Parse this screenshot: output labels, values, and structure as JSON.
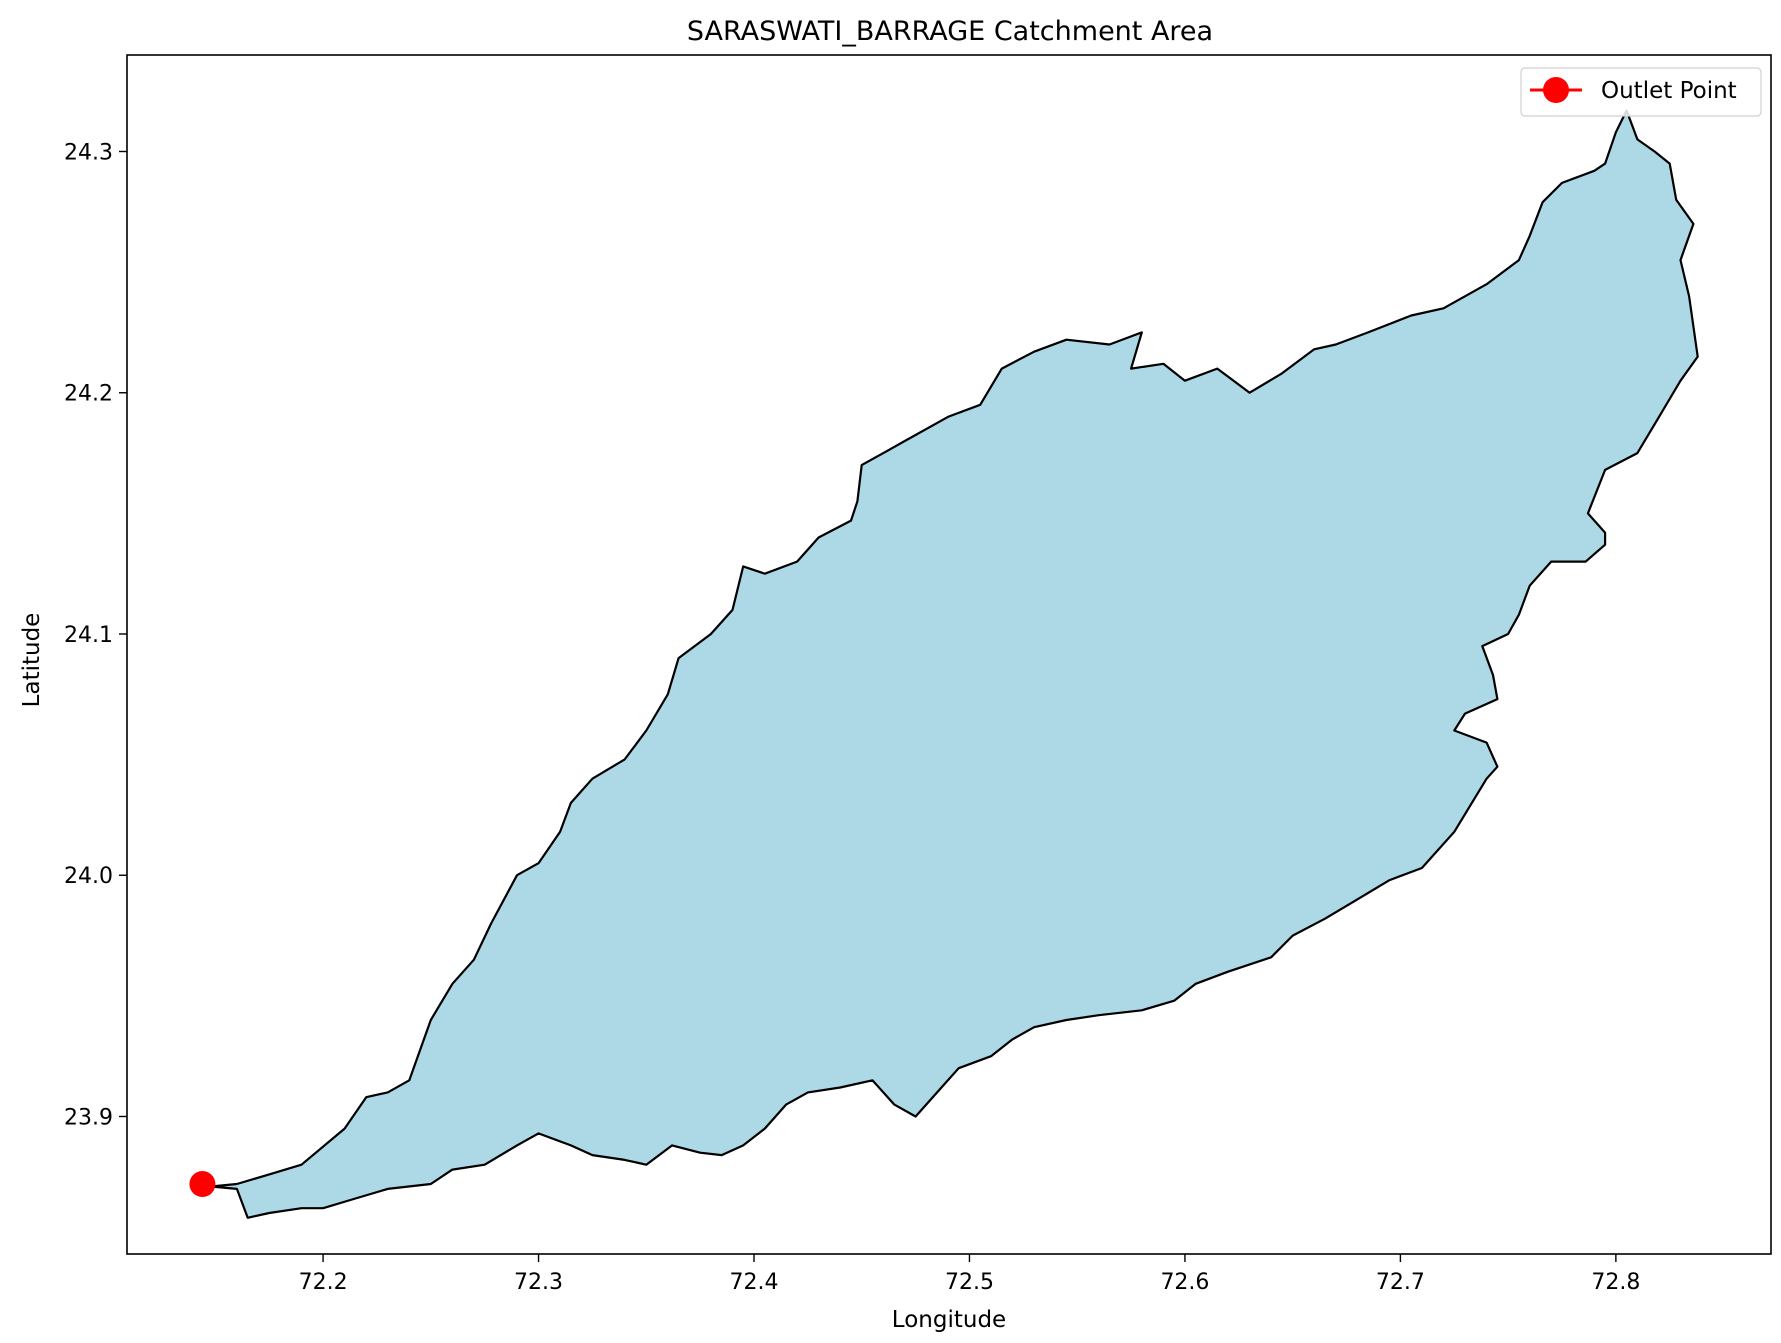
{
  "chart_data": {
    "type": "map",
    "title": "SARASWATI_BARRAGE Catchment Area",
    "xlabel": "Longitude",
    "ylabel": "Latitude",
    "xlim": [
      72.109,
      72.872
    ],
    "ylim": [
      23.843,
      24.34
    ],
    "xticks": [
      {
        "value": 72.2,
        "label": "72.2"
      },
      {
        "value": 72.3,
        "label": "72.3"
      },
      {
        "value": 72.4,
        "label": "72.4"
      },
      {
        "value": 72.5,
        "label": "72.5"
      },
      {
        "value": 72.6,
        "label": "72.6"
      },
      {
        "value": 72.7,
        "label": "72.7"
      },
      {
        "value": 72.8,
        "label": "72.8"
      }
    ],
    "yticks": [
      {
        "value": 23.9,
        "label": "23.9"
      },
      {
        "value": 24.0,
        "label": "24.0"
      },
      {
        "value": 24.1,
        "label": "24.1"
      },
      {
        "value": 24.2,
        "label": "24.2"
      },
      {
        "value": 24.3,
        "label": "24.3"
      }
    ],
    "catchment_fill": "#add8e6",
    "catchment_edge": "#000000",
    "outlet": {
      "name": "Outlet Point",
      "lon": 72.144,
      "lat": 23.872,
      "color": "#ff0000"
    },
    "legend_position": "upper right",
    "boundary": [
      [
        72.148,
        23.871
      ],
      [
        72.16,
        23.87
      ],
      [
        72.165,
        23.858
      ],
      [
        72.175,
        23.86
      ],
      [
        72.19,
        23.862
      ],
      [
        72.2,
        23.862
      ],
      [
        72.215,
        23.866
      ],
      [
        72.23,
        23.87
      ],
      [
        72.25,
        23.872
      ],
      [
        72.26,
        23.878
      ],
      [
        72.275,
        23.88
      ],
      [
        72.29,
        23.888
      ],
      [
        72.3,
        23.893
      ],
      [
        72.315,
        23.888
      ],
      [
        72.325,
        23.884
      ],
      [
        72.34,
        23.882
      ],
      [
        72.35,
        23.88
      ],
      [
        72.362,
        23.888
      ],
      [
        72.375,
        23.885
      ],
      [
        72.385,
        23.884
      ],
      [
        72.395,
        23.888
      ],
      [
        72.405,
        23.895
      ],
      [
        72.415,
        23.905
      ],
      [
        72.425,
        23.91
      ],
      [
        72.44,
        23.912
      ],
      [
        72.455,
        23.915
      ],
      [
        72.465,
        23.905
      ],
      [
        72.475,
        23.9
      ],
      [
        72.485,
        23.91
      ],
      [
        72.495,
        23.92
      ],
      [
        72.51,
        23.925
      ],
      [
        72.52,
        23.932
      ],
      [
        72.53,
        23.937
      ],
      [
        72.545,
        23.94
      ],
      [
        72.56,
        23.942
      ],
      [
        72.58,
        23.944
      ],
      [
        72.595,
        23.948
      ],
      [
        72.605,
        23.955
      ],
      [
        72.62,
        23.96
      ],
      [
        72.64,
        23.966
      ],
      [
        72.65,
        23.975
      ],
      [
        72.665,
        23.982
      ],
      [
        72.68,
        23.99
      ],
      [
        72.695,
        23.998
      ],
      [
        72.71,
        24.003
      ],
      [
        72.725,
        24.018
      ],
      [
        72.74,
        24.04
      ],
      [
        72.745,
        24.045
      ],
      [
        72.74,
        24.055
      ],
      [
        72.725,
        24.06
      ],
      [
        72.73,
        24.067
      ],
      [
        72.745,
        24.073
      ],
      [
        72.743,
        24.083
      ],
      [
        72.738,
        24.095
      ],
      [
        72.75,
        24.1
      ],
      [
        72.755,
        24.108
      ],
      [
        72.76,
        24.12
      ],
      [
        72.77,
        24.13
      ],
      [
        72.786,
        24.13
      ],
      [
        72.795,
        24.137
      ],
      [
        72.795,
        24.142
      ],
      [
        72.787,
        24.15
      ],
      [
        72.795,
        24.168
      ],
      [
        72.81,
        24.175
      ],
      [
        72.82,
        24.19
      ],
      [
        72.83,
        24.205
      ],
      [
        72.838,
        24.215
      ],
      [
        72.834,
        24.24
      ],
      [
        72.83,
        24.255
      ],
      [
        72.836,
        24.27
      ],
      [
        72.828,
        24.28
      ],
      [
        72.825,
        24.295
      ],
      [
        72.818,
        24.3
      ],
      [
        72.81,
        24.305
      ],
      [
        72.805,
        24.317
      ],
      [
        72.8,
        24.308
      ],
      [
        72.795,
        24.295
      ],
      [
        72.79,
        24.292
      ],
      [
        72.775,
        24.287
      ],
      [
        72.766,
        24.279
      ],
      [
        72.76,
        24.265
      ],
      [
        72.755,
        24.255
      ],
      [
        72.74,
        24.245
      ],
      [
        72.72,
        24.235
      ],
      [
        72.705,
        24.232
      ],
      [
        72.685,
        24.225
      ],
      [
        72.67,
        24.22
      ],
      [
        72.66,
        24.218
      ],
      [
        72.645,
        24.208
      ],
      [
        72.63,
        24.2
      ],
      [
        72.615,
        24.21
      ],
      [
        72.6,
        24.205
      ],
      [
        72.59,
        24.212
      ],
      [
        72.575,
        24.21
      ],
      [
        72.58,
        24.225
      ],
      [
        72.565,
        24.22
      ],
      [
        72.545,
        24.222
      ],
      [
        72.53,
        24.217
      ],
      [
        72.515,
        24.21
      ],
      [
        72.505,
        24.195
      ],
      [
        72.49,
        24.19
      ],
      [
        72.47,
        24.18
      ],
      [
        72.46,
        24.175
      ],
      [
        72.45,
        24.17
      ],
      [
        72.448,
        24.155
      ],
      [
        72.445,
        24.147
      ],
      [
        72.43,
        24.14
      ],
      [
        72.42,
        24.13
      ],
      [
        72.405,
        24.125
      ],
      [
        72.395,
        24.128
      ],
      [
        72.39,
        24.11
      ],
      [
        72.38,
        24.1
      ],
      [
        72.365,
        24.09
      ],
      [
        72.36,
        24.075
      ],
      [
        72.35,
        24.06
      ],
      [
        72.34,
        24.048
      ],
      [
        72.325,
        24.04
      ],
      [
        72.315,
        24.03
      ],
      [
        72.31,
        24.018
      ],
      [
        72.3,
        24.005
      ],
      [
        72.29,
        24.0
      ],
      [
        72.278,
        23.98
      ],
      [
        72.27,
        23.965
      ],
      [
        72.26,
        23.955
      ],
      [
        72.25,
        23.94
      ],
      [
        72.24,
        23.915
      ],
      [
        72.23,
        23.91
      ],
      [
        72.22,
        23.908
      ],
      [
        72.21,
        23.895
      ],
      [
        72.19,
        23.88
      ],
      [
        72.175,
        23.876
      ],
      [
        72.16,
        23.872
      ]
    ]
  }
}
